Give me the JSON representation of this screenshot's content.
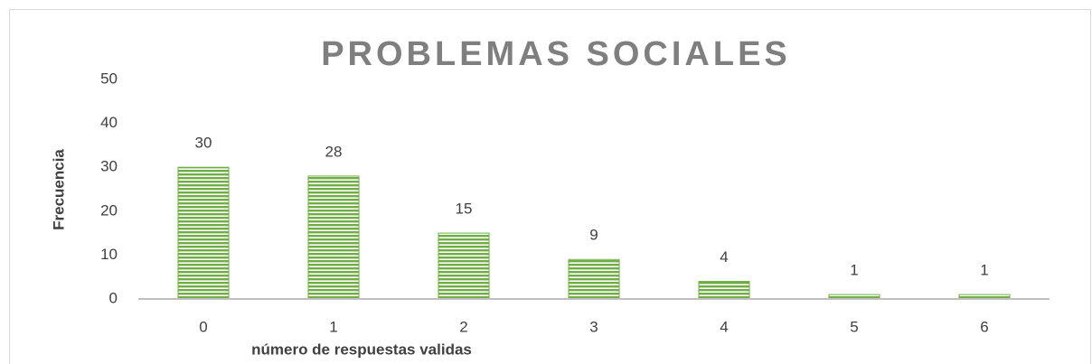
{
  "chart_data": {
    "type": "bar",
    "title": "PROBLEMAS SOCIALES",
    "x_label": "número de respuestas validas",
    "y_label": "Frecuencia",
    "categories": [
      "0",
      "1",
      "2",
      "3",
      "4",
      "5",
      "6"
    ],
    "values": [
      30,
      28,
      15,
      9,
      4,
      1,
      1
    ],
    "color": "#70ad47",
    "ylim": [
      0,
      50
    ],
    "yticks": [
      0,
      10,
      20,
      30,
      40,
      50
    ],
    "grid": false
  }
}
